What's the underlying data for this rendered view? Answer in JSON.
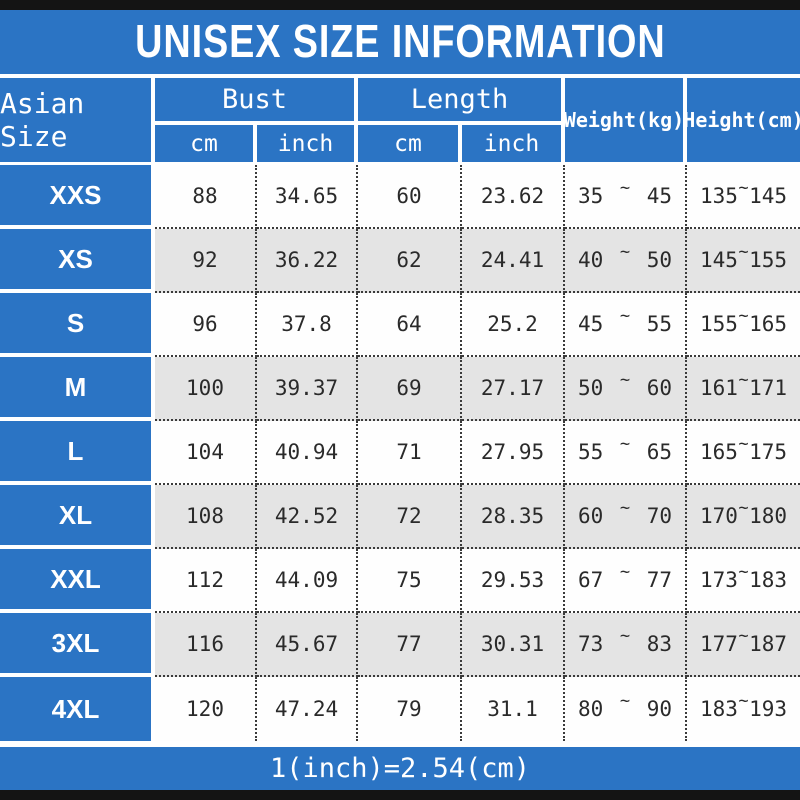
{
  "title_bar": {
    "title": "UNISEX SIZE INFORMATION"
  },
  "colors": {
    "blue": "#2b74c4",
    "row_white": "#fefefe",
    "row_gray": "#e4e4e4",
    "bar_black": "#141414",
    "dotted_border": "#3a3a3a",
    "text_white": "#ffffff",
    "text_dark": "#2a2a2a"
  },
  "table": {
    "corner_header": "Asian Size",
    "bust_label": "Bust",
    "length_label": "Length",
    "cm_label": "cm",
    "inch_label": "inch",
    "weight_label": "Weight(kg)",
    "height_label": "Height(cm)",
    "range_separator": "~"
  },
  "chart_data": {
    "type": "table",
    "title": "UNISEX SIZE INFORMATION",
    "columns": [
      "Asian Size",
      "Bust cm",
      "Bust inch",
      "Length cm",
      "Length inch",
      "Weight(kg)",
      "Height(cm)"
    ],
    "rows": [
      {
        "size": "XXS",
        "bust_cm": "88",
        "bust_inch": "34.65",
        "length_cm": "60",
        "length_inch": "23.62",
        "weight_min": "35",
        "weight_max": "45",
        "height_min": "135",
        "height_max": "145"
      },
      {
        "size": "XS",
        "bust_cm": "92",
        "bust_inch": "36.22",
        "length_cm": "62",
        "length_inch": "24.41",
        "weight_min": "40",
        "weight_max": "50",
        "height_min": "145",
        "height_max": "155"
      },
      {
        "size": "S",
        "bust_cm": "96",
        "bust_inch": "37.8",
        "length_cm": "64",
        "length_inch": "25.2",
        "weight_min": "45",
        "weight_max": "55",
        "height_min": "155",
        "height_max": "165"
      },
      {
        "size": "M",
        "bust_cm": "100",
        "bust_inch": "39.37",
        "length_cm": "69",
        "length_inch": "27.17",
        "weight_min": "50",
        "weight_max": "60",
        "height_min": "161",
        "height_max": "171"
      },
      {
        "size": "L",
        "bust_cm": "104",
        "bust_inch": "40.94",
        "length_cm": "71",
        "length_inch": "27.95",
        "weight_min": "55",
        "weight_max": "65",
        "height_min": "165",
        "height_max": "175"
      },
      {
        "size": "XL",
        "bust_cm": "108",
        "bust_inch": "42.52",
        "length_cm": "72",
        "length_inch": "28.35",
        "weight_min": "60",
        "weight_max": "70",
        "height_min": "170",
        "height_max": "180"
      },
      {
        "size": "XXL",
        "bust_cm": "112",
        "bust_inch": "44.09",
        "length_cm": "75",
        "length_inch": "29.53",
        "weight_min": "67",
        "weight_max": "77",
        "height_min": "173",
        "height_max": "183"
      },
      {
        "size": "3XL",
        "bust_cm": "116",
        "bust_inch": "45.67",
        "length_cm": "77",
        "length_inch": "30.31",
        "weight_min": "73",
        "weight_max": "83",
        "height_min": "177",
        "height_max": "187"
      },
      {
        "size": "4XL",
        "bust_cm": "120",
        "bust_inch": "47.24",
        "length_cm": "79",
        "length_inch": "31.1",
        "weight_min": "80",
        "weight_max": "90",
        "height_min": "183",
        "height_max": "193"
      }
    ]
  },
  "footer": {
    "note": "1(inch)=2.54(cm)"
  }
}
